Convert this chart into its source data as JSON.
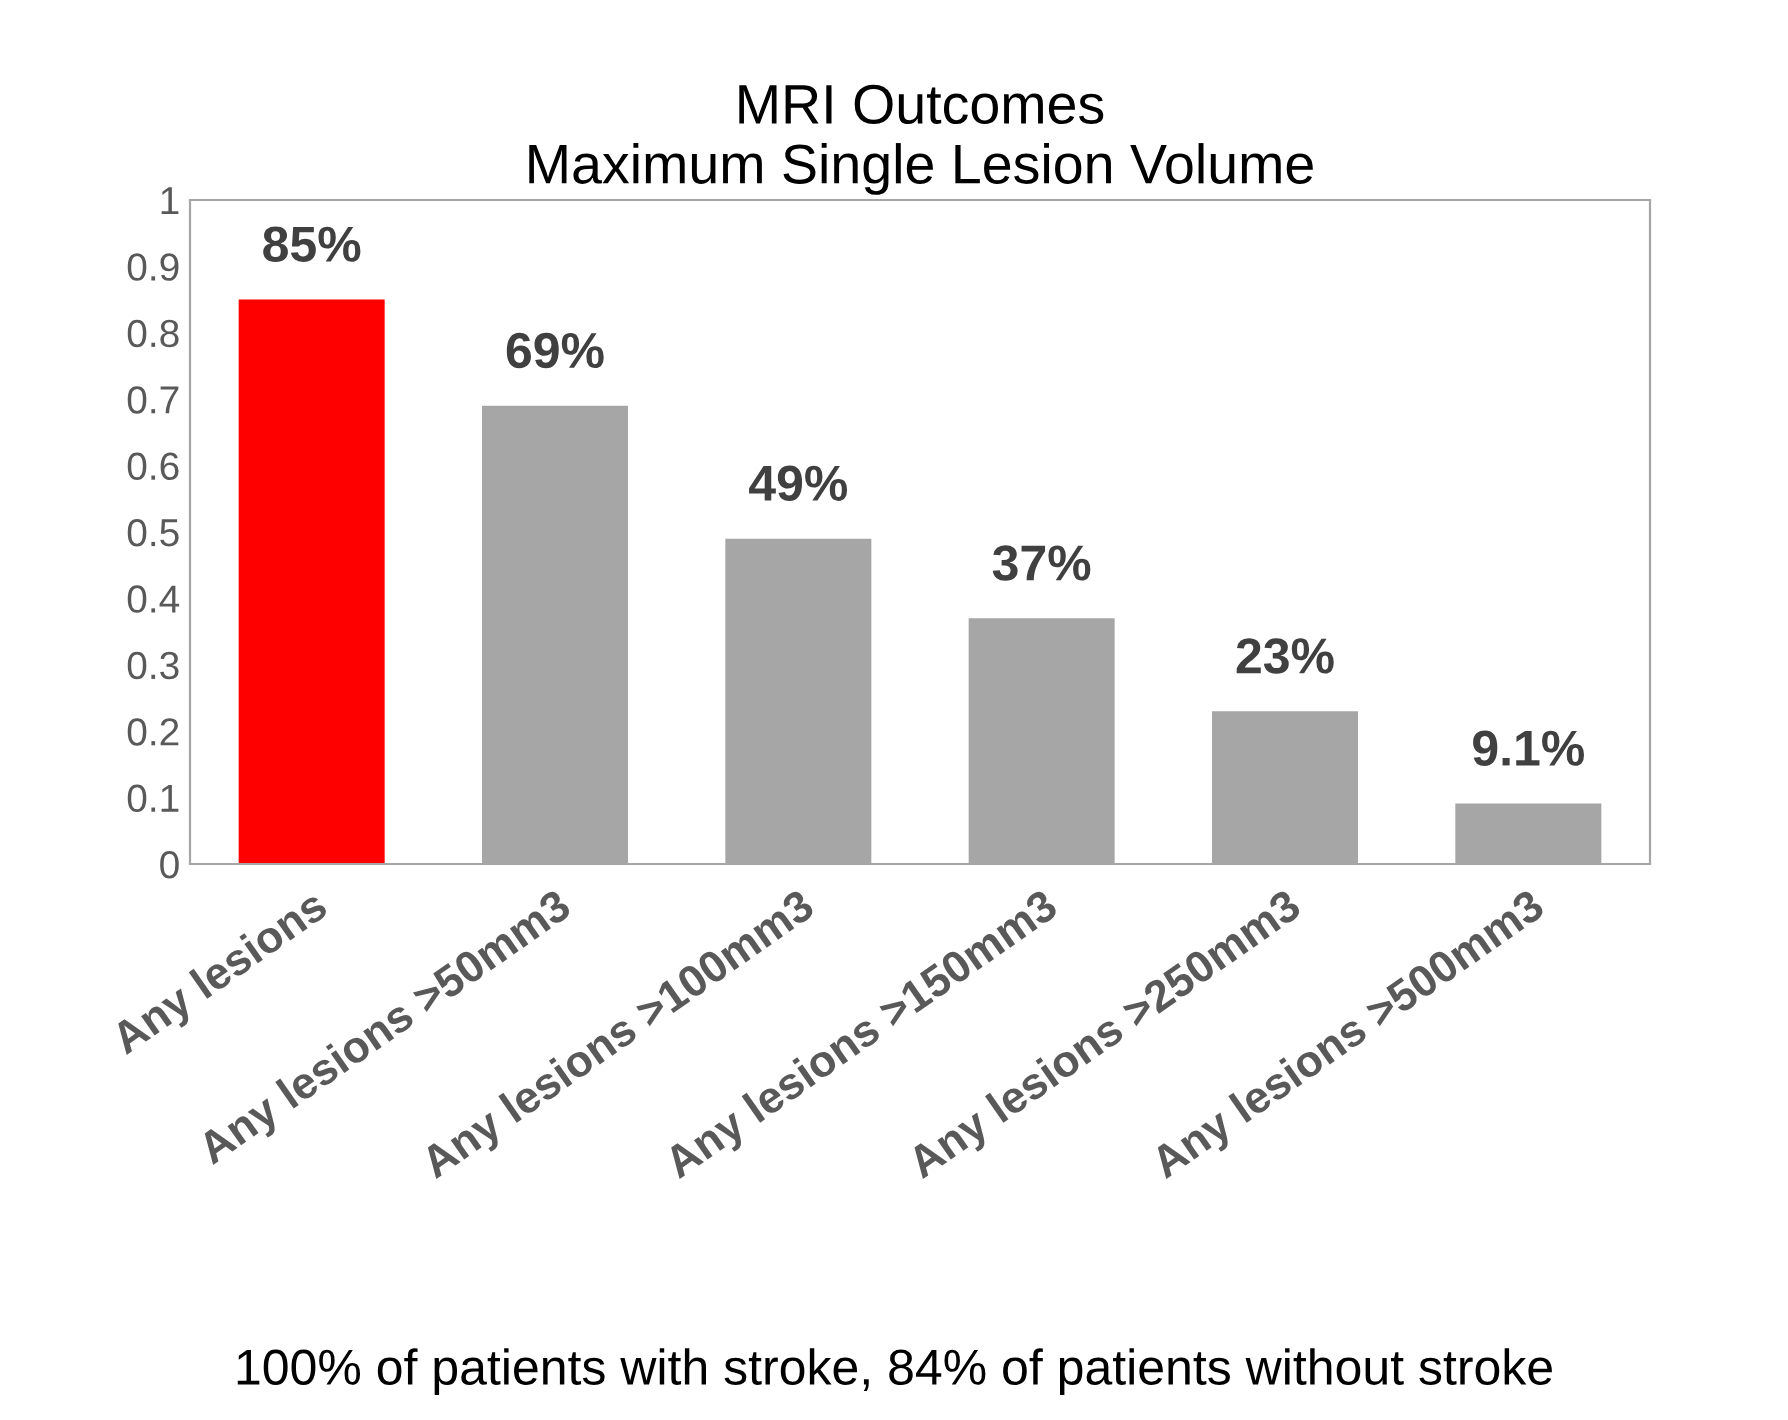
{
  "chart_data": {
    "type": "bar",
    "title": "MRI Outcomes\nMaximum Single Lesion Volume",
    "categories": [
      "Any lesions",
      "Any lesions >50mm3",
      "Any lesions >100mm3",
      "Any lesions >150mm3",
      "Any lesions >250mm3",
      "Any lesions >500mm3"
    ],
    "values": [
      0.85,
      0.69,
      0.49,
      0.37,
      0.23,
      0.091
    ],
    "colors": [
      "#ff0000",
      "#a6a6a6",
      "#a6a6a6",
      "#a6a6a6",
      "#a6a6a6",
      "#a6a6a6"
    ],
    "value_labels": [
      "85%",
      "69%",
      "49%",
      "37%",
      "23%",
      "9.1%"
    ],
    "ylim": [
      0,
      1
    ],
    "yticks": [
      0,
      0.1,
      0.2,
      0.3,
      0.4,
      0.5,
      0.6,
      0.7,
      0.8,
      0.9,
      1
    ],
    "grid": false,
    "legend": false,
    "annotations": [
      "100% of patients with stroke, 84% of patients without stroke"
    ]
  }
}
